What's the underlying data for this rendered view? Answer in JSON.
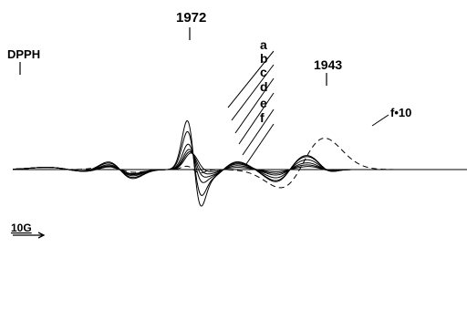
{
  "chart_data": {
    "type": "line",
    "title": "",
    "xlabel": "",
    "ylabel": "",
    "markers": [
      {
        "key": "dpph",
        "label": "DPPH"
      },
      {
        "key": "g1972",
        "label": "1972"
      },
      {
        "key": "g1943",
        "label": "1943"
      }
    ],
    "scale_label": "10G",
    "series": [
      {
        "name": "a",
        "dashed": false,
        "bands": [
          {
            "c": 212,
            "a": -72,
            "w": 7.5,
            "s": 18
          },
          {
            "c": 245,
            "a": 14,
            "w": 16,
            "s": 0
          },
          {
            "c": 318,
            "a": 22,
            "w": 16,
            "s": 0
          },
          {
            "c": 352,
            "a": -5,
            "w": 10,
            "s": 0
          },
          {
            "c": 132,
            "a": -16,
            "w": 14,
            "s": 0
          },
          {
            "c": 75,
            "a": -4,
            "w": 24,
            "s": 0
          }
        ]
      },
      {
        "name": "b",
        "dashed": false,
        "bands": [
          {
            "c": 212,
            "a": -52,
            "w": 7.5,
            "s": 18
          },
          {
            "c": 245,
            "a": 14,
            "w": 16,
            "s": 0
          },
          {
            "c": 318,
            "a": 20,
            "w": 16,
            "s": 0
          },
          {
            "c": 352,
            "a": -5,
            "w": 10,
            "s": 0
          },
          {
            "c": 132,
            "a": -14,
            "w": 14,
            "s": 0
          },
          {
            "c": 75,
            "a": -4,
            "w": 24,
            "s": 0
          }
        ]
      },
      {
        "name": "c",
        "dashed": false,
        "bands": [
          {
            "c": 212,
            "a": -28,
            "w": 7.5,
            "s": 18
          },
          {
            "c": 245,
            "a": 12,
            "w": 16,
            "s": 0
          },
          {
            "c": 318,
            "a": 15,
            "w": 16,
            "s": 0
          },
          {
            "c": 352,
            "a": -4,
            "w": 10,
            "s": 0
          },
          {
            "c": 132,
            "a": -11,
            "w": 14,
            "s": 0
          },
          {
            "c": 75,
            "a": -4,
            "w": 24,
            "s": 0
          }
        ]
      },
      {
        "name": "d",
        "dashed": false,
        "bands": [
          {
            "c": 212,
            "a": -17,
            "w": 7.5,
            "s": 18
          },
          {
            "c": 245,
            "a": 10,
            "w": 16,
            "s": 0
          },
          {
            "c": 318,
            "a": 10,
            "w": 16,
            "s": 0
          },
          {
            "c": 352,
            "a": -3,
            "w": 10,
            "s": 0
          },
          {
            "c": 132,
            "a": -9,
            "w": 14,
            "s": 0
          },
          {
            "c": 75,
            "a": -4,
            "w": 24,
            "s": 0
          }
        ]
      },
      {
        "name": "e",
        "dashed": false,
        "bands": [
          {
            "c": 212,
            "a": -11,
            "w": 7.5,
            "s": 18
          },
          {
            "c": 245,
            "a": 7,
            "w": 16,
            "s": 0
          },
          {
            "c": 318,
            "a": 7,
            "w": 16,
            "s": 0
          },
          {
            "c": 352,
            "a": -2,
            "w": 10,
            "s": 0
          },
          {
            "c": 132,
            "a": -8,
            "w": 14,
            "s": 0
          },
          {
            "c": 75,
            "a": -4,
            "w": 24,
            "s": 0
          }
        ]
      },
      {
        "name": "f",
        "dashed": false,
        "bands": [
          {
            "c": 212,
            "a": -6,
            "w": 7.5,
            "s": 18
          },
          {
            "c": 245,
            "a": 4,
            "w": 16,
            "s": 0
          },
          {
            "c": 318,
            "a": 4,
            "w": 16,
            "s": 0
          },
          {
            "c": 352,
            "a": -2,
            "w": 10,
            "s": 0
          },
          {
            "c": 132,
            "a": -7,
            "w": 14,
            "s": 0
          },
          {
            "c": 75,
            "a": -4,
            "w": 24,
            "s": 0
          }
        ]
      },
      {
        "name": "f•10",
        "dashed": true,
        "bands": [
          {
            "c": 212,
            "a": -6,
            "w": 7.5,
            "s": 0
          },
          {
            "c": 335,
            "a": 44,
            "w": 24,
            "s": 12
          },
          {
            "c": 132,
            "a": -5,
            "w": 16,
            "s": 0
          }
        ]
      }
    ]
  }
}
